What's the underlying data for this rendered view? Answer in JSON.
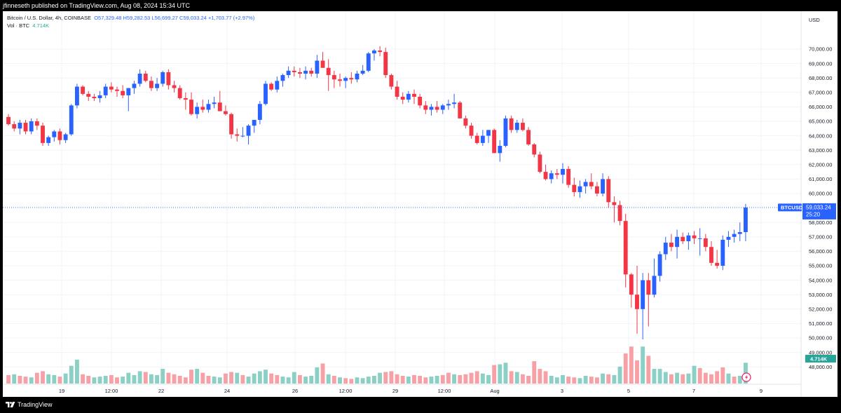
{
  "attribution": "jfinneseth published on TradingView.com, Aug 08, 2024 15:34 UTC",
  "legend": {
    "symbol": "Bitcoin / U.S. Dollar, 4h, COINBASE",
    "open": "O57,329.48",
    "high": "H59,282.53",
    "low": "L56,699.27",
    "close": "C59,033.24",
    "change": "+1,703.77 (+2.97%)",
    "vol_label": "Vol · BTC",
    "vol_value": "4.714K"
  },
  "price_axis": {
    "currency": "USD",
    "ticks": [
      "70,000.00",
      "69,000.00",
      "68,000.00",
      "67,000.00",
      "66,000.00",
      "65,000.00",
      "64,000.00",
      "63,000.00",
      "62,000.00",
      "61,000.00",
      "60,000.00",
      "58,000.00",
      "57,000.00",
      "56,000.00",
      "55,000.00",
      "54,000.00",
      "53,000.00",
      "52,000.00",
      "51,000.00",
      "50,000.00",
      "49,000.00",
      "48,000.00"
    ],
    "symbol_tag": "BTCUSD",
    "last_price": "59,033.24",
    "countdown": "25:20",
    "vol_tag": "4.714K"
  },
  "time_axis": {
    "labels": [
      "19",
      "12:00",
      "22",
      "24",
      "26",
      "12:00",
      "29",
      "12:00",
      "Aug",
      "3",
      "5",
      "7",
      "9"
    ]
  },
  "colors": {
    "up": "#2962ff",
    "down": "#f23645",
    "vol_up": "#8ad0c4",
    "vol_down": "#f7a1a6",
    "grid": "#f0f3fa",
    "last_price": "#2962ff",
    "vol_tag": "#26a69a"
  },
  "footer": {
    "brand": "TradingView"
  },
  "chart_data": {
    "type": "candlestick",
    "title": "Bitcoin / U.S. Dollar, 4h, COINBASE",
    "ylim": [
      48000,
      70500
    ],
    "last_close": 59033.24,
    "ohlc": [
      [
        65300,
        65500,
        64700,
        64800
      ],
      [
        64800,
        65000,
        64300,
        64500
      ],
      [
        64500,
        65100,
        64100,
        64900
      ],
      [
        64900,
        65100,
        64100,
        64300
      ],
      [
        64300,
        65200,
        64100,
        65000
      ],
      [
        65000,
        65200,
        64400,
        64700
      ],
      [
        64700,
        64900,
        63300,
        63500
      ],
      [
        63500,
        64000,
        63300,
        63900
      ],
      [
        63900,
        64400,
        63600,
        64300
      ],
      [
        64300,
        64500,
        63400,
        63700
      ],
      [
        63700,
        64200,
        63500,
        64100
      ],
      [
        64100,
        66200,
        64000,
        66100
      ],
      [
        66100,
        67600,
        65900,
        67400
      ],
      [
        67400,
        67500,
        66800,
        66900
      ],
      [
        66900,
        67100,
        66400,
        66700
      ],
      [
        66700,
        66900,
        66400,
        66600
      ],
      [
        66600,
        67100,
        66300,
        66800
      ],
      [
        66800,
        67600,
        66600,
        67400
      ],
      [
        67400,
        67700,
        67000,
        67200
      ],
      [
        67200,
        67400,
        66700,
        67100
      ],
      [
        67100,
        67500,
        66600,
        66800
      ],
      [
        66800,
        67300,
        65700,
        67300
      ],
      [
        67300,
        67800,
        66900,
        67600
      ],
      [
        67600,
        68600,
        67400,
        68300
      ],
      [
        68300,
        68500,
        67700,
        67800
      ],
      [
        67800,
        68100,
        67100,
        67300
      ],
      [
        67300,
        68000,
        67100,
        67600
      ],
      [
        67600,
        68500,
        67400,
        68400
      ],
      [
        68400,
        68600,
        67200,
        67500
      ],
      [
        67500,
        67800,
        67000,
        67300
      ],
      [
        67300,
        67500,
        66500,
        66600
      ],
      [
        66600,
        67000,
        65800,
        66500
      ],
      [
        66500,
        67000,
        65400,
        65500
      ],
      [
        65500,
        66300,
        65200,
        66000
      ],
      [
        66000,
        66500,
        65600,
        65800
      ],
      [
        65800,
        66500,
        65600,
        66200
      ],
      [
        66200,
        66700,
        65900,
        66300
      ],
      [
        66300,
        67100,
        65700,
        65700
      ],
      [
        65700,
        66100,
        65400,
        65500
      ],
      [
        65500,
        65600,
        63800,
        64100
      ],
      [
        64100,
        64500,
        63600,
        64000
      ],
      [
        64000,
        64600,
        63900,
        64000
      ],
      [
        64000,
        64800,
        63400,
        64700
      ],
      [
        64700,
        65100,
        64200,
        65100
      ],
      [
        65100,
        66400,
        64800,
        66200
      ],
      [
        66200,
        67800,
        66100,
        67600
      ],
      [
        67600,
        67700,
        67100,
        67200
      ],
      [
        67200,
        68100,
        67000,
        67800
      ],
      [
        67800,
        68300,
        67400,
        68200
      ],
      [
        68200,
        68800,
        68000,
        68500
      ],
      [
        68500,
        68800,
        68100,
        68400
      ],
      [
        68400,
        68700,
        68000,
        68300
      ],
      [
        68300,
        68800,
        67900,
        68500
      ],
      [
        68500,
        68700,
        68100,
        68300
      ],
      [
        68300,
        69600,
        68000,
        69200
      ],
      [
        69200,
        69800,
        68900,
        68700
      ],
      [
        68700,
        69300,
        67100,
        68200
      ],
      [
        68200,
        68500,
        67300,
        67900
      ],
      [
        67900,
        68300,
        67400,
        67800
      ],
      [
        67800,
        68100,
        67300,
        68000
      ],
      [
        68000,
        68400,
        67600,
        67900
      ],
      [
        67900,
        68500,
        67700,
        68300
      ],
      [
        68300,
        68900,
        68200,
        68500
      ],
      [
        68500,
        69800,
        68400,
        69700
      ],
      [
        69700,
        70000,
        69200,
        69900
      ],
      [
        69900,
        70200,
        69500,
        69800
      ],
      [
        69800,
        70100,
        68000,
        68200
      ],
      [
        68200,
        68300,
        67200,
        67400
      ],
      [
        67400,
        67800,
        66500,
        66700
      ],
      [
        66700,
        67000,
        66200,
        66500
      ],
      [
        66500,
        67100,
        66300,
        66900
      ],
      [
        66900,
        67200,
        66200,
        66700
      ],
      [
        66700,
        66900,
        65900,
        66100
      ],
      [
        66100,
        66400,
        65500,
        65800
      ],
      [
        65800,
        66200,
        65400,
        66000
      ],
      [
        66000,
        66400,
        65600,
        65800
      ],
      [
        65800,
        66200,
        65500,
        66100
      ],
      [
        66100,
        66500,
        65800,
        66200
      ],
      [
        66200,
        66900,
        65900,
        66300
      ],
      [
        66300,
        66400,
        65200,
        65200
      ],
      [
        65200,
        65400,
        64500,
        64700
      ],
      [
        64700,
        64900,
        63800,
        64000
      ],
      [
        64000,
        64200,
        63400,
        63500
      ],
      [
        63500,
        64400,
        63300,
        64000
      ],
      [
        64000,
        64400,
        63500,
        64400
      ],
      [
        64400,
        64500,
        62800,
        62800
      ],
      [
        62800,
        63700,
        62200,
        63300
      ],
      [
        63300,
        65400,
        63200,
        65200
      ],
      [
        65200,
        65400,
        64200,
        64400
      ],
      [
        64400,
        65100,
        64200,
        64900
      ],
      [
        64900,
        65200,
        64300,
        64400
      ],
      [
        64400,
        64600,
        63300,
        63400
      ],
      [
        63400,
        63500,
        62500,
        62700
      ],
      [
        62700,
        62900,
        61400,
        61500
      ],
      [
        61500,
        62000,
        60900,
        61000
      ],
      [
        61000,
        61600,
        60700,
        61400
      ],
      [
        61400,
        61700,
        61000,
        61300
      ],
      [
        61300,
        62100,
        60700,
        61700
      ],
      [
        61700,
        61900,
        60400,
        60600
      ],
      [
        60600,
        61100,
        59800,
        60100
      ],
      [
        60100,
        60900,
        59700,
        60500
      ],
      [
        60500,
        61000,
        60000,
        60800
      ],
      [
        60800,
        61400,
        60300,
        60500
      ],
      [
        60500,
        60800,
        59800,
        60000
      ],
      [
        60000,
        61400,
        59800,
        61000
      ],
      [
        61000,
        61200,
        59000,
        59400
      ],
      [
        59400,
        59800,
        58000,
        59200
      ],
      [
        59200,
        59500,
        57800,
        58100
      ],
      [
        58100,
        58600,
        53500,
        54400
      ],
      [
        54400,
        54500,
        52100,
        53000
      ],
      [
        53000,
        55000,
        50300,
        52000
      ],
      [
        52000,
        54500,
        49900,
        54000
      ],
      [
        54000,
        54500,
        50800,
        53000
      ],
      [
        53000,
        55500,
        52800,
        54300
      ],
      [
        54300,
        56000,
        53900,
        55800
      ],
      [
        55800,
        57000,
        55400,
        56600
      ],
      [
        56600,
        57200,
        56000,
        56300
      ],
      [
        56300,
        57500,
        55500,
        57000
      ],
      [
        57000,
        57300,
        56500,
        56700
      ],
      [
        56700,
        57300,
        56100,
        57100
      ],
      [
        57100,
        57400,
        56500,
        56900
      ],
      [
        56900,
        57600,
        55700,
        56900
      ],
      [
        56900,
        57200,
        56000,
        56300
      ],
      [
        56300,
        56700,
        55000,
        55200
      ],
      [
        55200,
        56100,
        54800,
        55000
      ],
      [
        55000,
        57100,
        54700,
        56800
      ],
      [
        56800,
        57400,
        56300,
        57000
      ],
      [
        57000,
        57500,
        56600,
        57200
      ],
      [
        57200,
        58000,
        56700,
        57330
      ],
      [
        57330,
        59280,
        56700,
        59033
      ]
    ],
    "volume": [
      [
        1.1,
        0
      ],
      [
        1.2,
        1
      ],
      [
        1.0,
        0
      ],
      [
        0.9,
        0
      ],
      [
        0.8,
        1
      ],
      [
        1.4,
        0
      ],
      [
        1.6,
        0
      ],
      [
        1.2,
        1
      ],
      [
        1.1,
        1
      ],
      [
        0.9,
        0
      ],
      [
        1.3,
        1
      ],
      [
        2.3,
        1
      ],
      [
        3.1,
        1
      ],
      [
        1.2,
        0
      ],
      [
        1.0,
        0
      ],
      [
        0.8,
        1
      ],
      [
        0.9,
        1
      ],
      [
        1.0,
        1
      ],
      [
        1.1,
        0
      ],
      [
        0.8,
        0
      ],
      [
        0.9,
        1
      ],
      [
        1.4,
        1
      ],
      [
        1.1,
        1
      ],
      [
        1.6,
        1
      ],
      [
        1.5,
        0
      ],
      [
        1.2,
        1
      ],
      [
        1.1,
        1
      ],
      [
        1.9,
        1
      ],
      [
        1.4,
        0
      ],
      [
        1.2,
        0
      ],
      [
        1.0,
        0
      ],
      [
        0.8,
        0
      ],
      [
        1.8,
        0
      ],
      [
        1.9,
        1
      ],
      [
        1.4,
        0
      ],
      [
        1.0,
        0
      ],
      [
        0.9,
        1
      ],
      [
        0.8,
        1
      ],
      [
        1.3,
        0
      ],
      [
        1.5,
        0
      ],
      [
        1.4,
        1
      ],
      [
        1.1,
        0
      ],
      [
        0.9,
        1
      ],
      [
        1.3,
        1
      ],
      [
        1.6,
        1
      ],
      [
        1.8,
        1
      ],
      [
        1.3,
        0
      ],
      [
        1.1,
        0
      ],
      [
        0.9,
        1
      ],
      [
        0.8,
        1
      ],
      [
        1.5,
        1
      ],
      [
        1.1,
        0
      ],
      [
        0.9,
        1
      ],
      [
        1.0,
        1
      ],
      [
        2.1,
        1
      ],
      [
        2.6,
        0
      ],
      [
        1.2,
        1
      ],
      [
        1.0,
        0
      ],
      [
        0.8,
        1
      ],
      [
        0.7,
        0
      ],
      [
        0.6,
        0
      ],
      [
        0.8,
        1
      ],
      [
        0.7,
        1
      ],
      [
        0.9,
        1
      ],
      [
        1.0,
        1
      ],
      [
        1.4,
        1
      ],
      [
        1.5,
        0
      ],
      [
        1.6,
        0
      ],
      [
        1.2,
        0
      ],
      [
        1.0,
        0
      ],
      [
        0.9,
        1
      ],
      [
        1.1,
        0
      ],
      [
        1.0,
        0
      ],
      [
        0.8,
        0
      ],
      [
        0.9,
        1
      ],
      [
        1.0,
        1
      ],
      [
        1.1,
        0
      ],
      [
        1.4,
        0
      ],
      [
        1.2,
        1
      ],
      [
        1.1,
        0
      ],
      [
        1.2,
        0
      ],
      [
        1.4,
        0
      ],
      [
        1.6,
        0
      ],
      [
        1.3,
        1
      ],
      [
        1.1,
        1
      ],
      [
        2.4,
        0
      ],
      [
        2.5,
        1
      ],
      [
        2.7,
        1
      ],
      [
        1.6,
        0
      ],
      [
        1.5,
        1
      ],
      [
        1.2,
        0
      ],
      [
        1.0,
        0
      ],
      [
        2.9,
        0
      ],
      [
        1.9,
        0
      ],
      [
        1.6,
        0
      ],
      [
        1.0,
        1
      ],
      [
        0.8,
        1
      ],
      [
        1.1,
        1
      ],
      [
        0.9,
        0
      ],
      [
        0.8,
        0
      ],
      [
        0.7,
        1
      ],
      [
        1.0,
        1
      ],
      [
        0.9,
        0
      ],
      [
        0.8,
        0
      ],
      [
        1.3,
        1
      ],
      [
        1.2,
        0
      ],
      [
        1.1,
        1
      ],
      [
        2.2,
        1
      ],
      [
        3.9,
        0
      ],
      [
        4.8,
        0
      ],
      [
        3.0,
        0
      ],
      [
        4.8,
        1
      ],
      [
        3.6,
        0
      ],
      [
        1.9,
        1
      ],
      [
        1.9,
        1
      ],
      [
        1.5,
        1
      ],
      [
        1.2,
        0
      ],
      [
        1.4,
        1
      ],
      [
        1.2,
        0
      ],
      [
        1.3,
        1
      ],
      [
        2.3,
        1
      ],
      [
        2.0,
        0
      ],
      [
        1.4,
        0
      ],
      [
        1.2,
        0
      ],
      [
        1.6,
        0
      ],
      [
        2.1,
        0
      ],
      [
        1.3,
        1
      ],
      [
        0.9,
        0
      ],
      [
        1.0,
        1
      ],
      [
        2.7,
        1
      ]
    ]
  }
}
